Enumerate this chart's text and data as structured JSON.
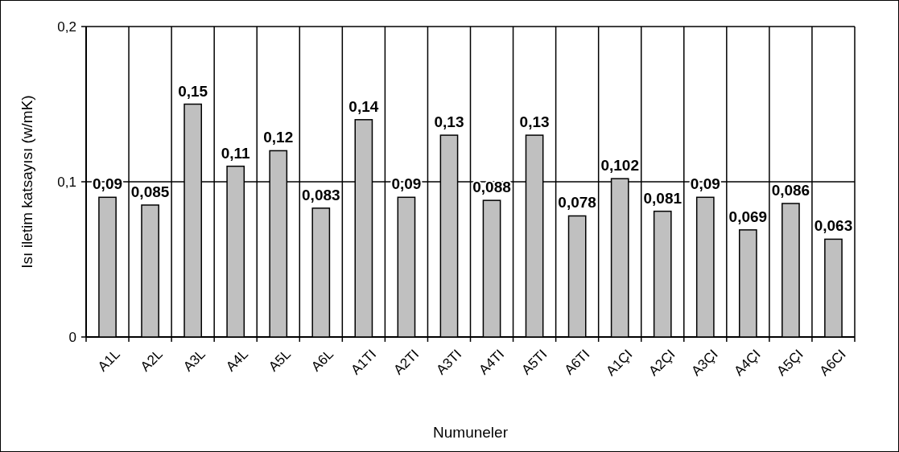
{
  "chart_data": {
    "type": "bar",
    "xlabel": "Numuneler",
    "ylabel": "Isı iletim katsayısı (w/mK)",
    "categories": [
      "A1L",
      "A2L",
      "A3L",
      "A4L",
      "A5L",
      "A6L",
      "A1TI",
      "A2TI",
      "A3TI",
      "A4TI",
      "A5TI",
      "A6TI",
      "A1ÇI",
      "A2ÇI",
      "A3ÇI",
      "A4ÇI",
      "A5ÇI",
      "A6CI"
    ],
    "values": [
      0.09,
      0.085,
      0.15,
      0.11,
      0.12,
      0.083,
      0.14,
      0.09,
      0.13,
      0.088,
      0.13,
      0.078,
      0.102,
      0.081,
      0.09,
      0.069,
      0.086,
      0.063
    ],
    "value_labels": [
      "0,09",
      "0,085",
      "0,15",
      "0,11",
      "0,12",
      "0,083",
      "0,14",
      "0,09",
      "0,13",
      "0,088",
      "0,13",
      "0,078",
      "0,102",
      "0,081",
      "0,09",
      "0,069",
      "0,086",
      "0,063"
    ],
    "color": "#c0c0c0",
    "ylim": [
      0,
      0.2
    ],
    "yticks": [
      {
        "value": 0,
        "label": "0"
      },
      {
        "value": 0.1,
        "label": "0,1"
      },
      {
        "value": 0.2,
        "label": "0,2"
      }
    ],
    "grid": true
  }
}
